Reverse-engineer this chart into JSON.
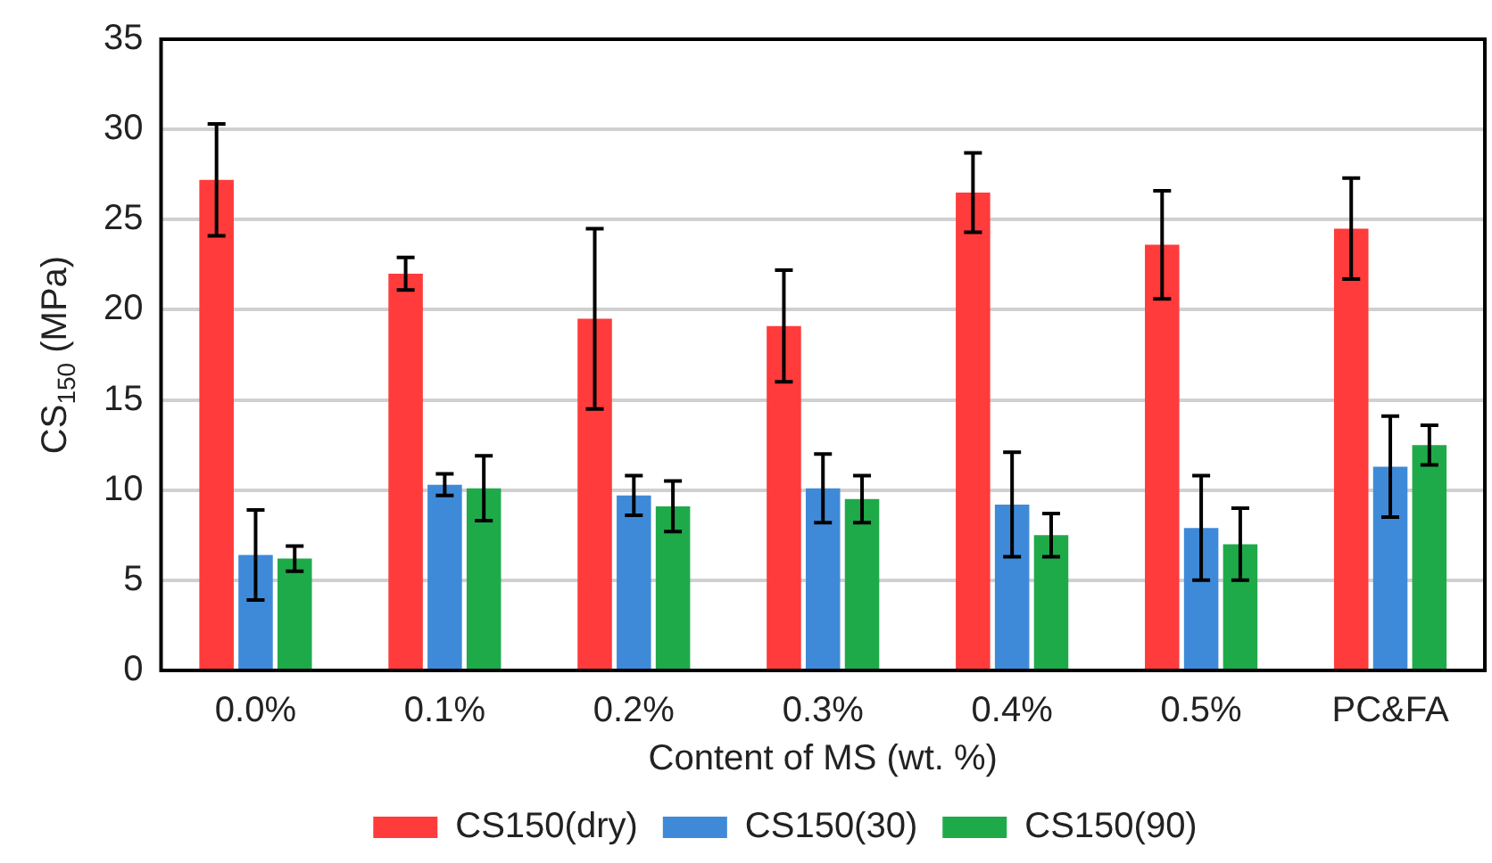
{
  "chart_data": {
    "type": "bar",
    "xlabel": "Content of MS (wt. %)",
    "ylabel": "CS$_{150}$ (MPa)",
    "categories": [
      "0.0%",
      "0.1%",
      "0.2%",
      "0.3%",
      "0.4%",
      "0.5%",
      "PC&FA"
    ],
    "series": [
      {
        "name": "CS150(dry)",
        "color": "#ff3b3b",
        "values": [
          27.2,
          22.0,
          19.5,
          19.1,
          26.5,
          23.6,
          24.5
        ],
        "errors": [
          3.1,
          0.9,
          5.0,
          3.1,
          2.2,
          3.0,
          2.8
        ]
      },
      {
        "name": "CS150(30)",
        "color": "#3f8ad8",
        "values": [
          6.4,
          10.3,
          9.7,
          10.1,
          9.2,
          7.9,
          11.3
        ],
        "errors": [
          2.5,
          0.6,
          1.1,
          1.9,
          2.9,
          2.9,
          2.8
        ]
      },
      {
        "name": "CS150(90)",
        "color": "#1faa4a",
        "values": [
          6.2,
          10.1,
          9.1,
          9.5,
          7.5,
          7.0,
          12.5
        ],
        "errors": [
          0.7,
          1.8,
          1.4,
          1.3,
          1.2,
          2.0,
          1.1
        ]
      }
    ],
    "ylim": [
      0,
      35
    ],
    "yticks": [
      0,
      5,
      10,
      15,
      20,
      25,
      30,
      35
    ],
    "grid": "y",
    "legend": "bottom"
  }
}
